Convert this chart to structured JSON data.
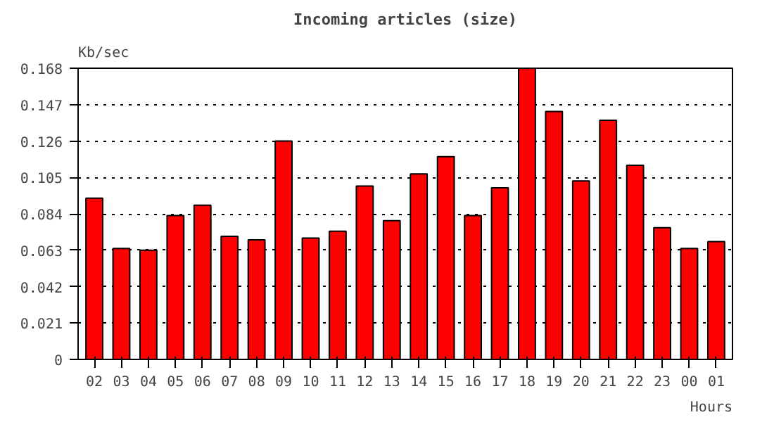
{
  "chart_data": {
    "type": "bar",
    "title": "Incoming articles (size)",
    "ylabel": "Kb/sec",
    "xlabel": "Hours",
    "categories": [
      "02",
      "03",
      "04",
      "05",
      "06",
      "07",
      "08",
      "09",
      "10",
      "11",
      "12",
      "13",
      "14",
      "15",
      "16",
      "17",
      "18",
      "19",
      "20",
      "21",
      "22",
      "23",
      "00",
      "01"
    ],
    "values": [
      0.093,
      0.064,
      0.063,
      0.083,
      0.089,
      0.071,
      0.069,
      0.126,
      0.07,
      0.074,
      0.1,
      0.08,
      0.107,
      0.117,
      0.083,
      0.099,
      0.168,
      0.143,
      0.103,
      0.138,
      0.112,
      0.076,
      0.064,
      0.068
    ],
    "color": "#ff0000",
    "ylim": [
      0,
      0.168
    ],
    "yticks": [
      0,
      0.021,
      0.042,
      0.063,
      0.084,
      0.105,
      0.126,
      0.147,
      0.168
    ],
    "grid": "y",
    "line_style": "dotted"
  }
}
